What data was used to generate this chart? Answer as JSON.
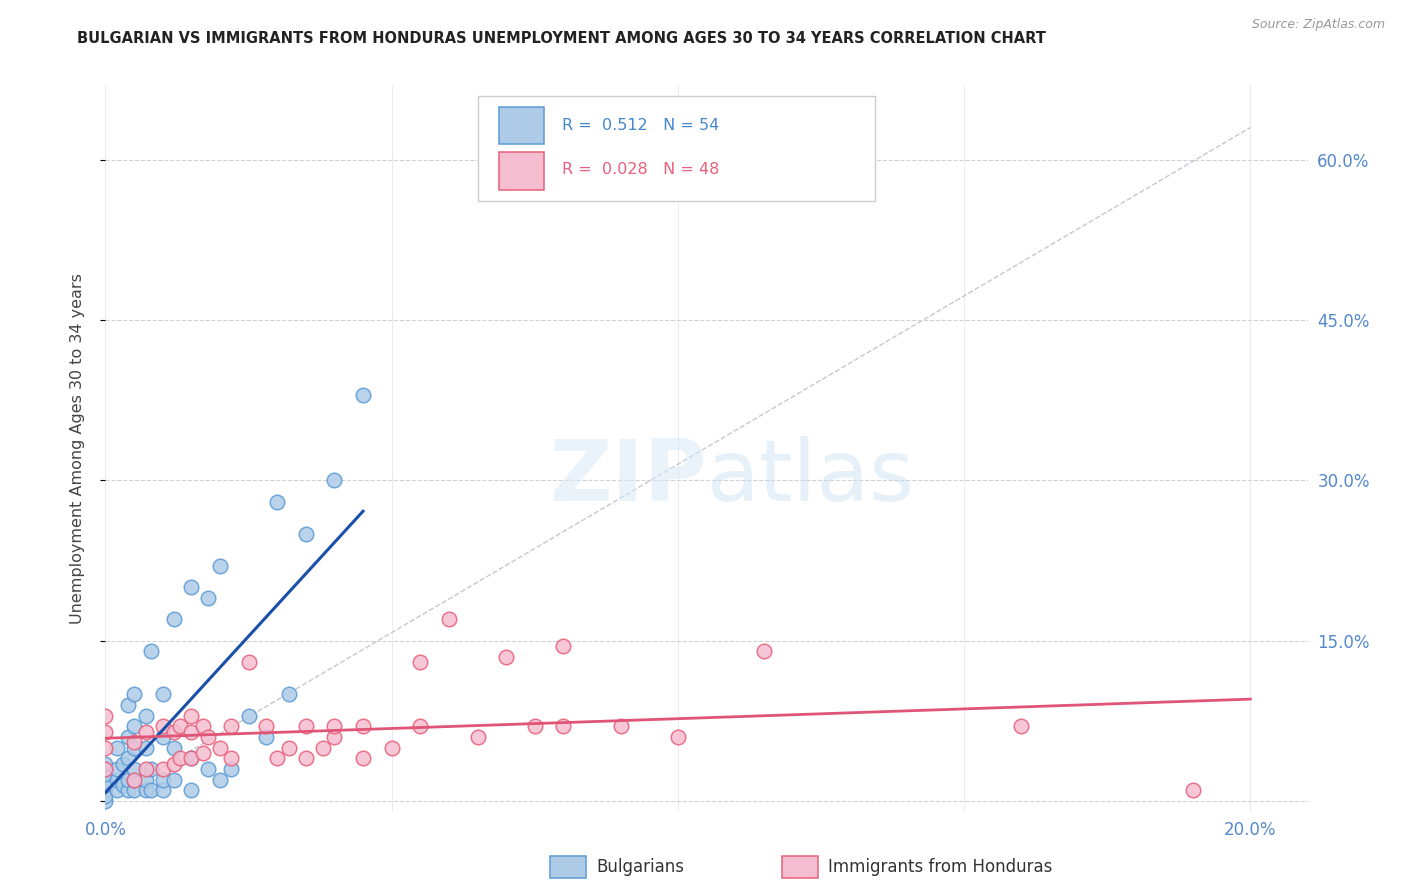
{
  "title": "BULGARIAN VS IMMIGRANTS FROM HONDURAS UNEMPLOYMENT AMONG AGES 30 TO 34 YEARS CORRELATION CHART",
  "source": "Source: ZipAtlas.com",
  "ylabel": "Unemployment Among Ages 30 to 34 years",
  "xlim": [
    0.0,
    0.21
  ],
  "ylim": [
    -0.01,
    0.67
  ],
  "yticks": [
    0.0,
    0.15,
    0.3,
    0.45,
    0.6
  ],
  "xticks": [
    0.0,
    0.05,
    0.1,
    0.15,
    0.2
  ],
  "bg_color": "#ffffff",
  "grid_color": "#d0d0d8",
  "bulgarian_color": "#aecce8",
  "bulgarian_edge_color": "#5b9bd5",
  "honduras_color": "#f5bdd0",
  "honduras_edge_color": "#e8607a",
  "trendline_bulgarian_color": "#1a4faa",
  "trendline_honduras_color": "#e05575",
  "ref_line_color": "#c0c0d0",
  "legend_R_bulgarian": "0.512",
  "legend_N_bulgarian": "54",
  "legend_R_honduras": "0.028",
  "legend_N_honduras": "48",
  "bulgarian_x": [
    0.0,
    0.0,
    0.0,
    0.0,
    0.0,
    0.0,
    0.0,
    0.0,
    0.002,
    0.002,
    0.002,
    0.002,
    0.003,
    0.003,
    0.004,
    0.004,
    0.004,
    0.004,
    0.004,
    0.005,
    0.005,
    0.005,
    0.005,
    0.005,
    0.005,
    0.007,
    0.007,
    0.007,
    0.007,
    0.008,
    0.008,
    0.008,
    0.01,
    0.01,
    0.01,
    0.01,
    0.012,
    0.012,
    0.012,
    0.015,
    0.015,
    0.015,
    0.018,
    0.018,
    0.02,
    0.02,
    0.022,
    0.025,
    0.028,
    0.03,
    0.032,
    0.035,
    0.04,
    0.045
  ],
  "bulgarian_y": [
    0.0,
    0.01,
    0.02,
    0.03,
    0.005,
    0.015,
    0.025,
    0.035,
    0.01,
    0.02,
    0.03,
    0.05,
    0.015,
    0.035,
    0.01,
    0.02,
    0.04,
    0.06,
    0.09,
    0.01,
    0.02,
    0.03,
    0.05,
    0.07,
    0.1,
    0.01,
    0.02,
    0.05,
    0.08,
    0.01,
    0.03,
    0.14,
    0.01,
    0.02,
    0.06,
    0.1,
    0.02,
    0.05,
    0.17,
    0.01,
    0.04,
    0.2,
    0.03,
    0.19,
    0.02,
    0.22,
    0.03,
    0.08,
    0.06,
    0.28,
    0.1,
    0.25,
    0.3,
    0.38
  ],
  "honduras_x": [
    0.0,
    0.0,
    0.0,
    0.0,
    0.005,
    0.005,
    0.007,
    0.007,
    0.01,
    0.01,
    0.012,
    0.012,
    0.013,
    0.013,
    0.015,
    0.015,
    0.015,
    0.017,
    0.017,
    0.018,
    0.02,
    0.022,
    0.022,
    0.025,
    0.028,
    0.03,
    0.032,
    0.035,
    0.035,
    0.038,
    0.04,
    0.04,
    0.045,
    0.045,
    0.05,
    0.055,
    0.055,
    0.06,
    0.065,
    0.07,
    0.075,
    0.08,
    0.08,
    0.09,
    0.1,
    0.115,
    0.16,
    0.19
  ],
  "honduras_y": [
    0.03,
    0.05,
    0.065,
    0.08,
    0.02,
    0.055,
    0.03,
    0.065,
    0.03,
    0.07,
    0.035,
    0.065,
    0.04,
    0.07,
    0.04,
    0.065,
    0.08,
    0.045,
    0.07,
    0.06,
    0.05,
    0.04,
    0.07,
    0.13,
    0.07,
    0.04,
    0.05,
    0.04,
    0.07,
    0.05,
    0.06,
    0.07,
    0.04,
    0.07,
    0.05,
    0.07,
    0.13,
    0.17,
    0.06,
    0.135,
    0.07,
    0.07,
    0.145,
    0.07,
    0.06,
    0.14,
    0.07,
    0.01
  ]
}
